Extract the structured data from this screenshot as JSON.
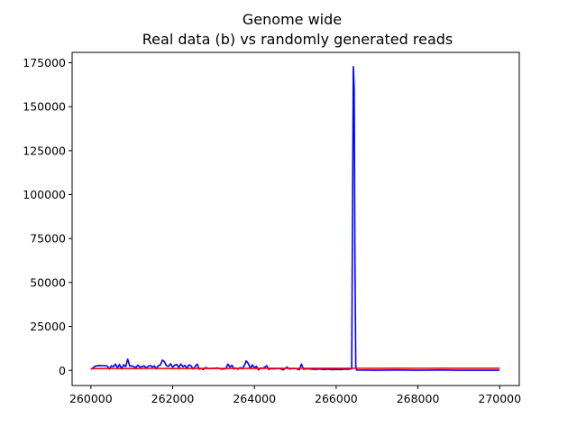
{
  "chart_data": {
    "type": "line",
    "title": "Genome wide",
    "subtitle": "Real data (b) vs randomly generated reads",
    "xlabel": "",
    "ylabel": "",
    "xlim": [
      259540,
      270480
    ],
    "ylim": [
      -8600,
      180900
    ],
    "x_ticks": [
      260000,
      262000,
      264000,
      266000,
      268000,
      270000
    ],
    "x_tick_labels": [
      "260000",
      "262000",
      "264000",
      "266000",
      "268000",
      "270000"
    ],
    "y_ticks": [
      0,
      25000,
      50000,
      75000,
      100000,
      125000,
      150000,
      175000
    ],
    "y_tick_labels": [
      "0",
      "25000",
      "50000",
      "75000",
      "100000",
      "125000",
      "150000",
      "175000"
    ],
    "grid": false,
    "legend": "none",
    "series": [
      {
        "color": "#0000ff",
        "points": [
          [
            260000,
            500
          ],
          [
            260100,
            2400
          ],
          [
            260200,
            2800
          ],
          [
            260300,
            2700
          ],
          [
            260400,
            2500
          ],
          [
            260450,
            800
          ],
          [
            260500,
            2600
          ],
          [
            260550,
            2200
          ],
          [
            260600,
            3600
          ],
          [
            260650,
            1400
          ],
          [
            260700,
            3400
          ],
          [
            260750,
            900
          ],
          [
            260800,
            3200
          ],
          [
            260850,
            2200
          ],
          [
            260900,
            6400
          ],
          [
            260950,
            2400
          ],
          [
            261000,
            2600
          ],
          [
            261100,
            1600
          ],
          [
            261150,
            3000
          ],
          [
            261200,
            1800
          ],
          [
            261300,
            2600
          ],
          [
            261350,
            1400
          ],
          [
            261400,
            2300
          ],
          [
            261450,
            2800
          ],
          [
            261500,
            1900
          ],
          [
            261550,
            2600
          ],
          [
            261600,
            1000
          ],
          [
            261650,
            2700
          ],
          [
            261700,
            3100
          ],
          [
            261750,
            5900
          ],
          [
            261800,
            4900
          ],
          [
            261850,
            2600
          ],
          [
            261900,
            2300
          ],
          [
            261950,
            3800
          ],
          [
            262000,
            1800
          ],
          [
            262050,
            3000
          ],
          [
            262100,
            3400
          ],
          [
            262150,
            1700
          ],
          [
            262200,
            3600
          ],
          [
            262250,
            2100
          ],
          [
            262300,
            2900
          ],
          [
            262350,
            1300
          ],
          [
            262400,
            3200
          ],
          [
            262450,
            2600
          ],
          [
            262500,
            800
          ],
          [
            262550,
            2100
          ],
          [
            262600,
            3600
          ],
          [
            262650,
            700
          ],
          [
            262700,
            1100
          ],
          [
            262750,
            500
          ],
          [
            262800,
            1600
          ],
          [
            262900,
            1000
          ],
          [
            263000,
            1200
          ],
          [
            263100,
            1400
          ],
          [
            263200,
            700
          ],
          [
            263300,
            1000
          ],
          [
            263350,
            3600
          ],
          [
            263400,
            1900
          ],
          [
            263450,
            2900
          ],
          [
            263500,
            800
          ],
          [
            263550,
            1400
          ],
          [
            263600,
            700
          ],
          [
            263650,
            1600
          ],
          [
            263700,
            1000
          ],
          [
            263750,
            2700
          ],
          [
            263800,
            5400
          ],
          [
            263850,
            3900
          ],
          [
            263900,
            1200
          ],
          [
            263950,
            3200
          ],
          [
            264000,
            1500
          ],
          [
            264050,
            2300
          ],
          [
            264100,
            300
          ],
          [
            264150,
            1400
          ],
          [
            264200,
            1200
          ],
          [
            264250,
            1800
          ],
          [
            264300,
            2700
          ],
          [
            264350,
            600
          ],
          [
            264400,
            1000
          ],
          [
            264500,
            900
          ],
          [
            264600,
            1200
          ],
          [
            264700,
            300
          ],
          [
            264800,
            1900
          ],
          [
            264850,
            800
          ],
          [
            264900,
            900
          ],
          [
            265000,
            1100
          ],
          [
            265100,
            400
          ],
          [
            265150,
            3600
          ],
          [
            265200,
            700
          ],
          [
            265300,
            900
          ],
          [
            265400,
            700
          ],
          [
            265500,
            600
          ],
          [
            265600,
            800
          ],
          [
            265700,
            500
          ],
          [
            265800,
            700
          ],
          [
            265900,
            400
          ],
          [
            266000,
            600
          ],
          [
            266100,
            500
          ],
          [
            266200,
            700
          ],
          [
            266300,
            600
          ],
          [
            266380,
            1000
          ],
          [
            266400,
            90000
          ],
          [
            266420,
            172800
          ],
          [
            266440,
            160000
          ],
          [
            266460,
            60000
          ],
          [
            266480,
            2000
          ],
          [
            266500,
            200
          ],
          [
            267000,
            100
          ],
          [
            267500,
            200
          ],
          [
            268000,
            100
          ],
          [
            268500,
            200
          ],
          [
            269000,
            100
          ],
          [
            269500,
            100
          ],
          [
            270000,
            100
          ]
        ]
      },
      {
        "color": "#ff0000",
        "points": [
          [
            260000,
            1000
          ],
          [
            260500,
            1100
          ],
          [
            261000,
            1050
          ],
          [
            261500,
            1150
          ],
          [
            262000,
            1080
          ],
          [
            262500,
            1120
          ],
          [
            263000,
            1100
          ],
          [
            263500,
            1150
          ],
          [
            264000,
            1120
          ],
          [
            264500,
            1180
          ],
          [
            265000,
            1150
          ],
          [
            265500,
            1200
          ],
          [
            266000,
            1180
          ],
          [
            266500,
            1220
          ],
          [
            267000,
            1200
          ],
          [
            267500,
            1250
          ],
          [
            268000,
            1220
          ],
          [
            268500,
            1250
          ],
          [
            269000,
            1230
          ],
          [
            269500,
            1260
          ],
          [
            270000,
            1250
          ]
        ]
      }
    ]
  }
}
